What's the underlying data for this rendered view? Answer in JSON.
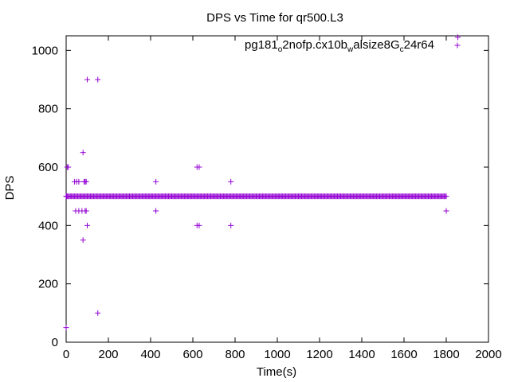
{
  "chart_data": {
    "type": "scatter",
    "title": "DPS vs Time for qr500.L3",
    "xlabel": "Time(s)",
    "ylabel": "DPS",
    "xlim": [
      0,
      2000
    ],
    "ylim": [
      0,
      1050
    ],
    "xticks": [
      0,
      200,
      400,
      600,
      800,
      1000,
      1200,
      1400,
      1600,
      1800,
      2000
    ],
    "yticks": [
      0,
      200,
      400,
      600,
      800,
      1000
    ],
    "grid": false,
    "marker": "+",
    "legend": {
      "placement": "top-right",
      "label_parts": [
        {
          "text": "pg181",
          "sub": false
        },
        {
          "text": "o",
          "sub": true
        },
        {
          "text": "2nofp.cx10b",
          "sub": false
        },
        {
          "text": "w",
          "sub": true
        },
        {
          "text": "alsize8G",
          "sub": false
        },
        {
          "text": "c",
          "sub": true
        },
        {
          "text": "24r64",
          "sub": false
        }
      ]
    },
    "color": "#9400d3",
    "baseline": {
      "y": 500,
      "x_from": 0,
      "x_to": 1800,
      "step": 5
    },
    "points": [
      [
        0,
        50
      ],
      [
        2,
        500
      ],
      [
        5,
        600
      ],
      [
        10,
        600
      ],
      [
        40,
        550
      ],
      [
        45,
        450
      ],
      [
        50,
        550
      ],
      [
        60,
        550
      ],
      [
        60,
        450
      ],
      [
        75,
        450
      ],
      [
        80,
        650
      ],
      [
        80,
        350
      ],
      [
        85,
        550
      ],
      [
        90,
        550
      ],
      [
        90,
        450
      ],
      [
        95,
        550
      ],
      [
        95,
        450
      ],
      [
        100,
        400
      ],
      [
        100,
        900
      ],
      [
        150,
        900
      ],
      [
        150,
        100
      ],
      [
        425,
        550
      ],
      [
        425,
        450
      ],
      [
        620,
        600
      ],
      [
        620,
        400
      ],
      [
        630,
        600
      ],
      [
        630,
        400
      ],
      [
        780,
        550
      ],
      [
        780,
        400
      ],
      [
        1800,
        450
      ],
      [
        1855,
        1045
      ]
    ]
  }
}
